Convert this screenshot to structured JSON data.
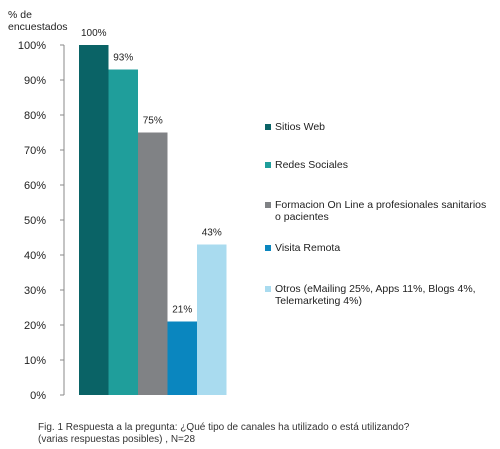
{
  "chart_data": {
    "type": "bar",
    "ylabel": "% de\nencuestados",
    "ylim": [
      0,
      100
    ],
    "yticks": [
      "0%",
      "10%",
      "20%",
      "30%",
      "40%",
      "50%",
      "60%",
      "70%",
      "80%",
      "90%",
      "100%"
    ],
    "categories": [
      "Sitios Web",
      "Redes Sociales",
      "Formacion On Line a profesionales sanitarios\no pacientes",
      "Visita Remota",
      "Otros (eMailing 25%, Apps 11%, Blogs 4%,\nTelemarketing 4%)"
    ],
    "values": [
      100,
      93,
      75,
      21,
      43
    ],
    "data_labels": [
      "100%",
      "93%",
      "75%",
      "21%",
      "43%"
    ],
    "colors": [
      "#0a6366",
      "#1f9e9b",
      "#808285",
      "#0a86bf",
      "#a9dbef"
    ],
    "legend_position": "right",
    "grid": false
  },
  "caption": "Fig. 1 Respuesta  a la pregunta:  ¿Qué tipo de canales ha utilizado o está utilizando?\n(varias  respuestas  posibles) , N=28"
}
